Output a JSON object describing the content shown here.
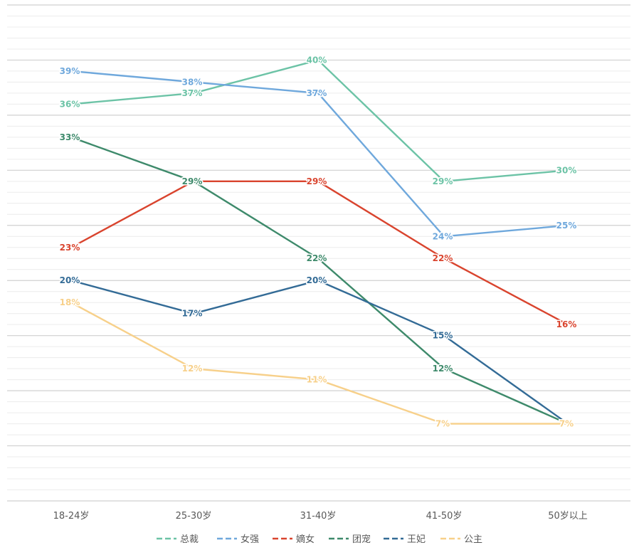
{
  "chart_data": {
    "type": "line",
    "categories": [
      "18-24岁",
      "25-30岁",
      "31-40岁",
      "41-50岁",
      "50岁以上"
    ],
    "ylim": [
      0,
      45
    ],
    "grid": true,
    "legend_position": "bottom",
    "series": [
      {
        "name": "总裁",
        "color": "#6cc3a6",
        "values": [
          36,
          37,
          40,
          29,
          30
        ],
        "labels": [
          "36%",
          "37%",
          "40%",
          "29%",
          "30%"
        ]
      },
      {
        "name": "女强",
        "color": "#6fa8dc",
        "values": [
          39,
          38,
          37,
          24,
          25
        ],
        "labels": [
          "39%",
          "38%",
          "37%",
          "24%",
          "25%"
        ]
      },
      {
        "name": "嫡女",
        "color": "#d9442e",
        "values": [
          23,
          29,
          29,
          22,
          16
        ],
        "labels": [
          "23%",
          "29%",
          "29%",
          "22%",
          "16%"
        ]
      },
      {
        "name": "团宠",
        "color": "#3e8a6b",
        "values": [
          33,
          29,
          22,
          12,
          7
        ],
        "labels": [
          "33%",
          "29%",
          "22%",
          "12%",
          "7%"
        ]
      },
      {
        "name": "王妃",
        "color": "#336b96",
        "values": [
          20,
          17,
          20,
          15,
          7
        ],
        "labels": [
          "20%",
          "17%",
          "20%",
          "15%",
          "7%"
        ]
      },
      {
        "name": "公主",
        "color": "#f7d08a",
        "values": [
          18,
          12,
          11,
          7,
          7
        ],
        "labels": [
          "18%",
          "12%",
          "11%",
          "7%",
          "7%"
        ]
      }
    ]
  }
}
